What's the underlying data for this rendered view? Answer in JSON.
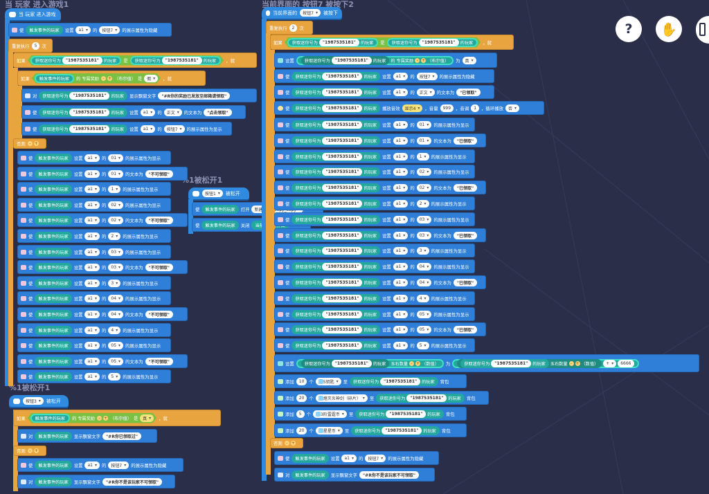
{
  "canvas": {
    "background": "#2a2e48",
    "accent_block": "#2f7fd8",
    "accent_control": "#e8a53f",
    "accent_pill": "#24a89d"
  },
  "captions": {
    "c1": "当 玩家 进入游戏1",
    "c2": "当前界面的 按钮7 被按下2",
    "c3": "%1被松开1",
    "c4": "%1被松开1"
  },
  "toolbar": {
    "help": "?",
    "hand": "✋",
    "icon_names": [
      "help-icon",
      "hand-icon",
      "panel-icon"
    ]
  },
  "hat1": {
    "label": "当 玩家 进入游戏"
  },
  "hat2": {
    "label": "当前界面的",
    "dd": "按钮7",
    "tail": "被按下"
  },
  "hat3": {
    "dd": "按钮1",
    "tail": "被松开"
  },
  "hat4": {
    "dd": "按钮3",
    "tail": "被松开"
  },
  "w": {
    "shi": "使",
    "dui": "对",
    "setv": "设置",
    "de": "的",
    "shezhi": "设置",
    "fou": "否则",
    "wei": "为",
    "jiu": "，就",
    "trig": "触发事件的玩家",
    "getp": "获取迷你号为",
    "uid": "\"1987535181\"",
    "wanjia": "的玩家",
    "deng": "是",
    "a1": "a1",
    "show": "的展示属性为显示",
    "hide": "的展示属性为隐藏",
    "txt": "的文本为",
    "zhengwen": "正文",
    "repeat": "重复执行",
    "ci": "次",
    "ruguo": "如果",
    "exclusive": "的 专属奖励",
    "bool": "（布尔值）",
    "true": "真",
    "false": "假",
    "tip": "显示飘窗文字",
    "add": "添加",
    "ge": "个",
    "zhi": "至",
    "bag": "背包",
    "equal": "是"
  },
  "script1": {
    "set_hide": [
      "使",
      "触发事件的玩家",
      "设置",
      "a1",
      "的",
      "按钮7",
      "的展示属性为隐藏"
    ],
    "repeat_times": "5",
    "tip_text": "\"#R你的奖励已发放至邮箱请领取\"",
    "click_text": "\"点击领取\"",
    "rows": [
      {
        "ctrl": "01",
        "kind": "show"
      },
      {
        "ctrl": "01",
        "kind": "text",
        "val": "\"不可领取\""
      },
      {
        "ctrl": "1",
        "kind": "show"
      },
      {
        "ctrl": "02",
        "kind": "show"
      },
      {
        "ctrl": "02",
        "kind": "text",
        "val": "\"不可领取\""
      },
      {
        "ctrl": "2",
        "kind": "show"
      },
      {
        "ctrl": "03",
        "kind": "show"
      },
      {
        "ctrl": "03",
        "kind": "text",
        "val": "\"不可领取\""
      },
      {
        "ctrl": "3",
        "kind": "show"
      },
      {
        "ctrl": "04",
        "kind": "show"
      },
      {
        "ctrl": "04",
        "kind": "text",
        "val": "\"不可领取\""
      },
      {
        "ctrl": "4",
        "kind": "show"
      },
      {
        "ctrl": "05",
        "kind": "show"
      },
      {
        "ctrl": "05",
        "kind": "text",
        "val": "\"不可领取\""
      },
      {
        "ctrl": "5",
        "kind": "show"
      }
    ]
  },
  "script3": {
    "open": "打开",
    "ui_name": "新建UI16_copy_copy",
    "close": "关闭",
    "current_ui": "当前编辑的界面"
  },
  "script4": {
    "got": "\"#R你已领取过\"",
    "not_allowed": "\"#R你不是该玩家不可领取\""
  },
  "script2": {
    "repeat_times": "2",
    "sound": "播放音效",
    "sound_name": "显示4",
    "volume_label": "，音量",
    "volume": "999",
    "pitch_label": "，音调",
    "pitch": "1",
    "loop_label": "，循环播放",
    "loop": "否",
    "claimed": "\"已领取\"",
    "rows": [
      {
        "ctrl": "01",
        "kind": "show"
      },
      {
        "ctrl": "01",
        "kind": "text"
      },
      {
        "ctrl": "1",
        "kind": "show"
      },
      {
        "ctrl": "02",
        "kind": "show"
      },
      {
        "ctrl": "02",
        "kind": "text"
      },
      {
        "ctrl": "2",
        "kind": "show"
      },
      {
        "ctrl": "03",
        "kind": "show"
      },
      {
        "ctrl": "03",
        "kind": "text"
      },
      {
        "ctrl": "3",
        "kind": "show"
      },
      {
        "ctrl": "04",
        "kind": "show"
      },
      {
        "ctrl": "04",
        "kind": "text"
      },
      {
        "ctrl": "4",
        "kind": "show"
      },
      {
        "ctrl": "05",
        "kind": "show"
      },
      {
        "ctrl": "05",
        "kind": "text"
      },
      {
        "ctrl": "5",
        "kind": "show"
      }
    ],
    "gem_attr": "玉石数量",
    "num_type": "（数值）",
    "plus": "+",
    "gem_add": "6666",
    "items": [
      {
        "count": "10",
        "name": "S钥匙"
      },
      {
        "count": "20",
        "name": "熄灭炎神剑（碎片）"
      },
      {
        "count": "5",
        "name": "3阶雷霆币"
      },
      {
        "count": "20",
        "name": "星星币"
      }
    ]
  }
}
